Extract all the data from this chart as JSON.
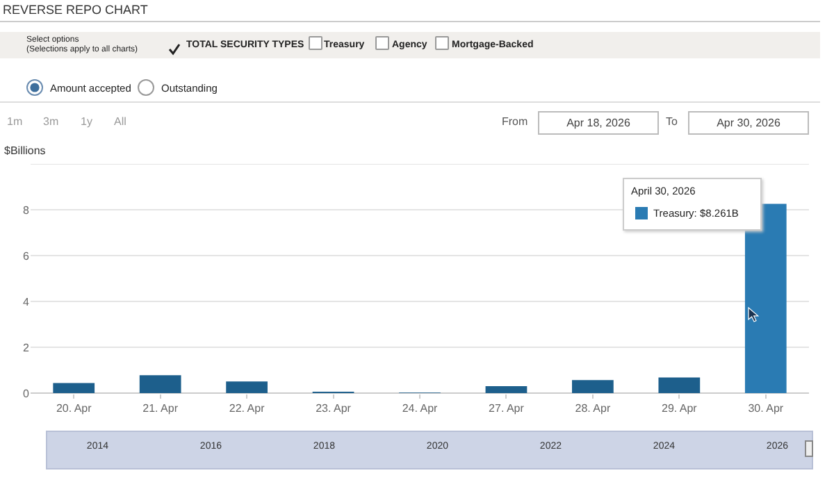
{
  "chart_data": {
    "type": "bar",
    "title": "REVERSE REPO CHART",
    "ylabel": "$Billions",
    "categories": [
      "20. Apr",
      "21. Apr",
      "22. Apr",
      "23. Apr",
      "24. Apr",
      "27. Apr",
      "28. Apr",
      "29. Apr",
      "30. Apr"
    ],
    "values": [
      0.44,
      0.78,
      0.51,
      0.06,
      0.02,
      0.3,
      0.57,
      0.68,
      8.261
    ],
    "colors": [
      "#1d5f8c",
      "#1d5f8c",
      "#1d5f8c",
      "#1d5f8c",
      "#1d5f8c",
      "#1d5f8c",
      "#1d5f8c",
      "#1d5f8c",
      "#2a7bb3"
    ],
    "ylim": [
      0,
      10
    ],
    "yticks": [
      0,
      2,
      4,
      6,
      8,
      {
        "value": 10,
        "label": null
      }
    ],
    "grid": "y",
    "annotations": [
      "Select options",
      "(Selections apply to all charts)",
      "TOTAL SECURITY TYPES",
      "Treasury",
      "Agency",
      "Mortgage-Backed",
      "Amount accepted",
      "Outstanding",
      "1m",
      "3m",
      "1y",
      "All",
      "From",
      "Apr 18, 2026",
      "To",
      "Apr 30, 2026",
      "2014",
      "2016",
      "2018",
      "2020",
      "2022",
      "2024",
      "2026",
      "April 30, 2026",
      "Treasury: $8.261B"
    ]
  }
}
